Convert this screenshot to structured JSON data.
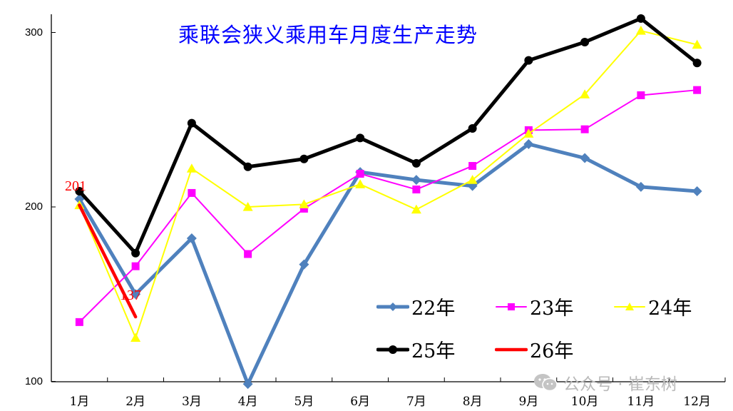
{
  "chart_data": {
    "type": "line",
    "title": "乘联会狭义乘用车月度生产走势",
    "xlabel": "",
    "ylabel": "",
    "categories": [
      "1月",
      "2月",
      "3月",
      "4月",
      "5月",
      "6月",
      "7月",
      "8月",
      "9月",
      "10月",
      "11月",
      "12月"
    ],
    "yticks": [
      100,
      200,
      300
    ],
    "ylim": [
      100,
      310
    ],
    "grid": false,
    "legend_position": "inside-bottom-right",
    "series": [
      {
        "name": "22年",
        "color": "#4f81bd",
        "marker": "diamond",
        "values": [
          204.5,
          150,
          182,
          98.5,
          167,
          220,
          215.5,
          212,
          236,
          228,
          211.5,
          209
        ]
      },
      {
        "name": "23年",
        "color": "#ff00ff",
        "marker": "square",
        "values": [
          134,
          166,
          208,
          173,
          199,
          219,
          210,
          223.5,
          244,
          244.5,
          264,
          267
        ]
      },
      {
        "name": "24年",
        "color": "#ffff00",
        "marker": "triangle",
        "values": [
          201,
          125,
          222,
          200,
          201.5,
          213,
          198.5,
          215.5,
          242,
          264.5,
          301,
          293
        ]
      },
      {
        "name": "25年",
        "color": "#000000",
        "marker": "circle",
        "values": [
          209,
          173.5,
          248,
          223,
          227.5,
          239.5,
          225,
          245,
          284,
          294.5,
          308,
          282.5
        ]
      },
      {
        "name": "26年",
        "color": "#ff0000",
        "marker": "none",
        "values": [
          201,
          137
        ]
      }
    ],
    "annotations": [
      {
        "series": "26年",
        "x": "1月",
        "text": "201"
      },
      {
        "series": "26年",
        "x": "2月",
        "text": "137"
      }
    ]
  },
  "watermark": "公众号 · 崔东树"
}
